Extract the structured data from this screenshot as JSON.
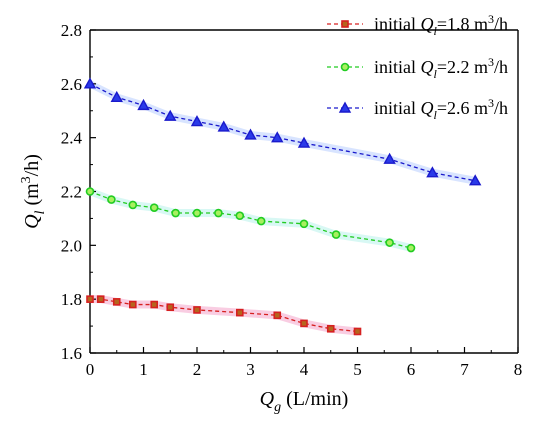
{
  "chart_data": {
    "type": "line",
    "xlabel": {
      "main": "Q",
      "sub": "g",
      "rest": " (L/min)"
    },
    "ylabel": {
      "main": "Q",
      "sub": "l",
      "rest": " (m",
      "sup": "3",
      "tail": "/h)"
    },
    "xlim": [
      0,
      8
    ],
    "ylim": [
      1.6,
      2.8
    ],
    "x_ticks": [
      "0",
      "1",
      "2",
      "3",
      "4",
      "5",
      "6",
      "7",
      "8"
    ],
    "y_ticks": [
      "1.6",
      "1.8",
      "2.0",
      "2.2",
      "2.4",
      "2.6",
      "2.8"
    ],
    "grid": false,
    "legend_position": "top-right",
    "series": [
      {
        "legend": {
          "prefix": "initial ",
          "main": "Q",
          "sub": "l",
          "rest": "=1.8 m",
          "sup": "3",
          "tail": "/h"
        },
        "color": "#d62020",
        "fill": "#b5651d",
        "band": "#f7b8d6",
        "marker": "square",
        "x": [
          0,
          0.2,
          0.5,
          0.8,
          1.2,
          1.5,
          2.0,
          2.8,
          3.5,
          4.0,
          4.5,
          5.0
        ],
        "y": [
          1.8,
          1.8,
          1.79,
          1.78,
          1.78,
          1.77,
          1.76,
          1.75,
          1.74,
          1.71,
          1.69,
          1.68
        ]
      },
      {
        "legend": {
          "prefix": "initial ",
          "main": "Q",
          "sub": "l",
          "rest": "=2.2 m",
          "sup": "3",
          "tail": "/h"
        },
        "color": "#22cc22",
        "fill": "#a8f060",
        "band": "#c8f5f0",
        "marker": "circle",
        "x": [
          0,
          0.4,
          0.8,
          1.2,
          1.6,
          2.0,
          2.4,
          2.8,
          3.2,
          4.0,
          4.6,
          5.6,
          6.0
        ],
        "y": [
          2.2,
          2.17,
          2.15,
          2.14,
          2.12,
          2.12,
          2.12,
          2.11,
          2.09,
          2.08,
          2.04,
          2.01,
          1.99
        ]
      },
      {
        "legend": {
          "prefix": "initial ",
          "main": "Q",
          "sub": "l",
          "rest": "=2.6 m",
          "sup": "3",
          "tail": "/h"
        },
        "color": "#1a1acc",
        "fill": "#2a3ae8",
        "band": "#c8d8ff",
        "marker": "triangle",
        "x": [
          0,
          0.5,
          1.0,
          1.5,
          2.0,
          2.5,
          3.0,
          3.5,
          4.0,
          5.6,
          6.4,
          7.2
        ],
        "y": [
          2.6,
          2.55,
          2.52,
          2.48,
          2.46,
          2.44,
          2.41,
          2.4,
          2.38,
          2.32,
          2.27,
          2.24
        ]
      }
    ]
  }
}
